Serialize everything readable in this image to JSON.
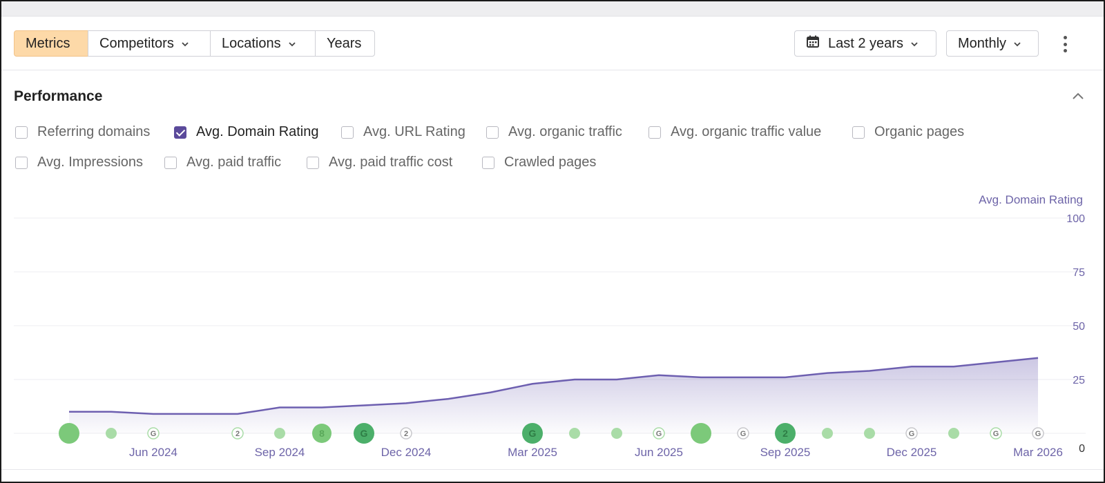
{
  "toolbar": {
    "segments": [
      "Metrics",
      "Competitors",
      "Locations",
      "Years"
    ],
    "active_segment": "Metrics",
    "range_label": "Last 2 years",
    "interval_label": "Monthly"
  },
  "section": {
    "title": "Performance"
  },
  "metrics": [
    {
      "label": "Referring domains",
      "checked": false
    },
    {
      "label": "Avg. Domain Rating",
      "checked": true
    },
    {
      "label": "Avg. URL Rating",
      "checked": false
    },
    {
      "label": "Avg. organic traffic",
      "checked": false
    },
    {
      "label": "Avg. organic traffic value",
      "checked": false
    },
    {
      "label": "Organic pages",
      "checked": false
    },
    {
      "label": "Avg. Impressions",
      "checked": false
    },
    {
      "label": "Avg. paid traffic",
      "checked": false
    },
    {
      "label": "Avg. paid traffic cost",
      "checked": false
    },
    {
      "label": "Crawled pages",
      "checked": false
    }
  ],
  "colors": {
    "accent": "#6d5fb0",
    "active_segment_bg": "#fdd9a8",
    "event_green": "#7cc97a",
    "event_green_dark": "#4caf6a"
  },
  "chart_data": {
    "type": "area",
    "ylabel": "Avg. Domain Rating",
    "ylim": [
      0,
      100
    ],
    "yticks": [
      0,
      25,
      50,
      75,
      100
    ],
    "x_tick_labels": [
      "Jun 2024",
      "Sep 2024",
      "Dec 2024",
      "Mar 2025",
      "Jun 2025",
      "Sep 2025",
      "Dec 2025",
      "Mar 2026"
    ],
    "x": [
      "Apr 2024",
      "May 2024",
      "Jun 2024",
      "Jul 2024",
      "Aug 2024",
      "Sep 2024",
      "Oct 2024",
      "Nov 2024",
      "Dec 2024",
      "Jan 2025",
      "Feb 2025",
      "Mar 2025",
      "Apr 2025",
      "May 2025",
      "Jun 2025",
      "Jul 2025",
      "Aug 2025",
      "Sep 2025",
      "Oct 2025",
      "Nov 2025",
      "Dec 2025",
      "Jan 2026",
      "Feb 2026",
      "Mar 2026"
    ],
    "series": [
      {
        "values": [
          10,
          10,
          9,
          9,
          9,
          12,
          12,
          13,
          14,
          16,
          19,
          23,
          25,
          25,
          27,
          26,
          26,
          26,
          28,
          29,
          31,
          31,
          33,
          35
        ]
      }
    ],
    "events": [
      {
        "month": "Apr 2024",
        "size": "large",
        "label": "",
        "style": "green"
      },
      {
        "month": "May 2024",
        "size": "small",
        "label": "",
        "style": "green"
      },
      {
        "month": "Jun 2024",
        "size": "small",
        "label": "G",
        "style": "outline-green"
      },
      {
        "month": "Aug 2024",
        "size": "small",
        "label": "2",
        "style": "outline-green"
      },
      {
        "month": "Sep 2024",
        "size": "small",
        "label": "",
        "style": "green"
      },
      {
        "month": "Oct 2024",
        "size": "medium",
        "label": "8",
        "style": "green"
      },
      {
        "month": "Nov 2024",
        "size": "large",
        "label": "G",
        "style": "dark"
      },
      {
        "month": "Dec 2024",
        "size": "small",
        "label": "2",
        "style": "outline"
      },
      {
        "month": "Mar 2025",
        "size": "large",
        "label": "G",
        "style": "dark"
      },
      {
        "month": "Apr 2025",
        "size": "small",
        "label": "",
        "style": "green"
      },
      {
        "month": "May 2025",
        "size": "small",
        "label": "",
        "style": "green"
      },
      {
        "month": "Jun 2025",
        "size": "small",
        "label": "G",
        "style": "outline-green"
      },
      {
        "month": "Jul 2025",
        "size": "large",
        "label": "",
        "style": "green"
      },
      {
        "month": "Aug 2025",
        "size": "small",
        "label": "G",
        "style": "outline"
      },
      {
        "month": "Sep 2025",
        "size": "large",
        "label": "2",
        "style": "dark"
      },
      {
        "month": "Oct 2025",
        "size": "small",
        "label": "",
        "style": "green"
      },
      {
        "month": "Nov 2025",
        "size": "small",
        "label": "",
        "style": "green"
      },
      {
        "month": "Dec 2025",
        "size": "small",
        "label": "G",
        "style": "outline"
      },
      {
        "month": "Jan 2026",
        "size": "small",
        "label": "",
        "style": "green"
      },
      {
        "month": "Feb 2026",
        "size": "small",
        "label": "G",
        "style": "outline-green"
      },
      {
        "month": "Mar 2026",
        "size": "small",
        "label": "G",
        "style": "outline"
      }
    ]
  }
}
